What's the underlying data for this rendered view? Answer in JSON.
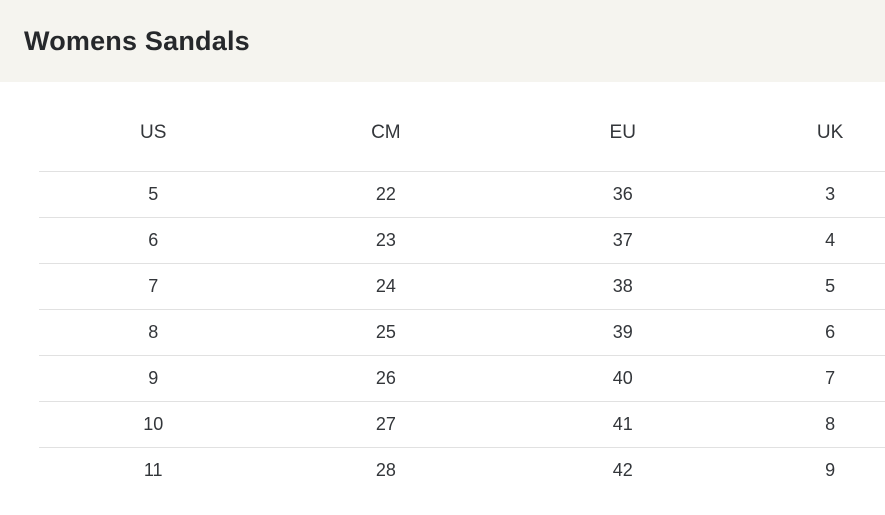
{
  "page": {
    "title": "Womens Sandals"
  },
  "size_chart": {
    "columns": [
      "US",
      "CM",
      "EU",
      "UK"
    ],
    "rows": [
      [
        "5",
        "22",
        "36",
        "3"
      ],
      [
        "6",
        "23",
        "37",
        "4"
      ],
      [
        "7",
        "24",
        "38",
        "5"
      ],
      [
        "8",
        "25",
        "39",
        "6"
      ],
      [
        "9",
        "26",
        "40",
        "7"
      ],
      [
        "10",
        "27",
        "41",
        "8"
      ],
      [
        "11",
        "28",
        "42",
        "9"
      ]
    ]
  },
  "colors": {
    "header_band_bg": "#f5f4ef",
    "divider": "#e1e1e1",
    "title_text": "#26282b",
    "table_text": "#33363a",
    "page_bg": "#ffffff"
  }
}
